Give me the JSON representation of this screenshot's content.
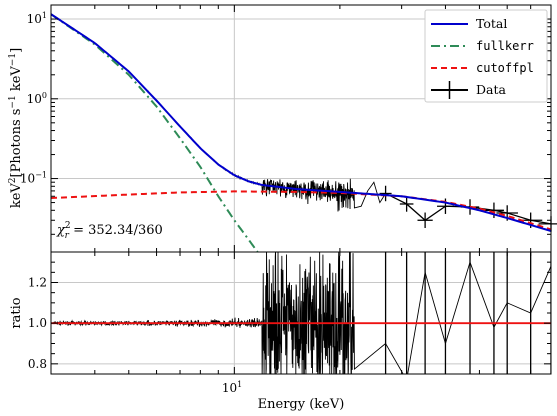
{
  "chart_data": [
    {
      "type": "line",
      "panel": "spectrum",
      "ylabel": "keV$^2$[Photons s$^{-1}$ keV$^{-1}$]",
      "ylabel_parts": [
        "keV",
        "2",
        "[Photons s",
        "−1",
        " keV",
        "−1",
        "]"
      ],
      "yscale": "log",
      "xscale": "log",
      "xlim": [
        3,
        80
      ],
      "ylim": [
        0.012,
        15
      ],
      "x_range_shown": [
        3,
        80
      ],
      "yticks": [
        {
          "value": 10,
          "base": "10",
          "exp": "1"
        },
        {
          "value": 1,
          "base": "10",
          "exp": "0"
        },
        {
          "value": 0.1,
          "base": "10",
          "exp": "−1"
        }
      ],
      "annotation": {
        "symbol": "χ",
        "sub": "r",
        "sup": "2",
        "text": " = 352.34/360"
      },
      "grid": true,
      "legend_position": "top-right",
      "series": [
        {
          "name": "Total",
          "style": "solid",
          "color": "#0000cc",
          "points": [
            [
              3,
              11.5
            ],
            [
              4,
              5.0
            ],
            [
              5,
              2.2
            ],
            [
              6,
              0.95
            ],
            [
              7,
              0.45
            ],
            [
              8,
              0.24
            ],
            [
              9,
              0.15
            ],
            [
              10,
              0.11
            ],
            [
              11,
              0.092
            ],
            [
              12,
              0.083
            ],
            [
              15,
              0.074
            ],
            [
              20,
              0.068
            ],
            [
              30,
              0.06
            ],
            [
              40,
              0.05
            ],
            [
              50,
              0.04
            ],
            [
              60,
              0.032
            ],
            [
              80,
              0.022
            ]
          ]
        },
        {
          "name": "fullkerr",
          "style": "dashdot",
          "color": "#2e8b57",
          "points": [
            [
              3,
              11.5
            ],
            [
              4,
              4.8
            ],
            [
              5,
              2.0
            ],
            [
              6,
              0.8
            ],
            [
              7,
              0.32
            ],
            [
              8,
              0.14
            ],
            [
              9,
              0.06
            ],
            [
              10,
              0.03
            ],
            [
              11,
              0.017
            ],
            [
              12,
              0.01
            ]
          ]
        },
        {
          "name": "cutoffpl",
          "style": "dashed",
          "color": "#ee1111",
          "points": [
            [
              3,
              0.057
            ],
            [
              5,
              0.063
            ],
            [
              7,
              0.067
            ],
            [
              10,
              0.069
            ],
            [
              15,
              0.068
            ],
            [
              20,
              0.066
            ],
            [
              30,
              0.06
            ],
            [
              40,
              0.051
            ],
            [
              50,
              0.042
            ],
            [
              60,
              0.034
            ],
            [
              80,
              0.023
            ]
          ]
        },
        {
          "name": "Data",
          "style": "errorbar",
          "color": "#000000",
          "points": [
            [
              27,
              0.065
            ],
            [
              31,
              0.048
            ],
            [
              35,
              0.03
            ],
            [
              40,
              0.045
            ],
            [
              47,
              0.044
            ],
            [
              55,
              0.04
            ],
            [
              60,
              0.037
            ],
            [
              70,
              0.03
            ],
            [
              80,
              0.027
            ]
          ]
        }
      ]
    },
    {
      "type": "line",
      "panel": "ratio",
      "xlabel": "Energy (keV)",
      "ylabel": "ratio",
      "xscale": "log",
      "xlim": [
        3,
        80
      ],
      "ylim": [
        0.75,
        1.35
      ],
      "x_ticklabel": {
        "value": 10,
        "base": "10",
        "exp": "1"
      },
      "yticks": [
        "0.8",
        "1.0",
        "1.2"
      ],
      "ytick_values": [
        0.8,
        1.0,
        1.2
      ],
      "reference_line": {
        "value": 1.0,
        "color": "#ee1111"
      },
      "grid": true,
      "series": [
        {
          "name": "ratio",
          "color": "#000000",
          "points": [
            [
              27,
              0.9
            ],
            [
              31,
              0.72
            ],
            [
              35,
              1.25
            ],
            [
              40,
              0.9
            ],
            [
              47,
              1.3
            ],
            [
              55,
              0.98
            ],
            [
              60,
              1.1
            ],
            [
              70,
              1.05
            ],
            [
              80,
              1.28
            ]
          ]
        }
      ]
    }
  ]
}
